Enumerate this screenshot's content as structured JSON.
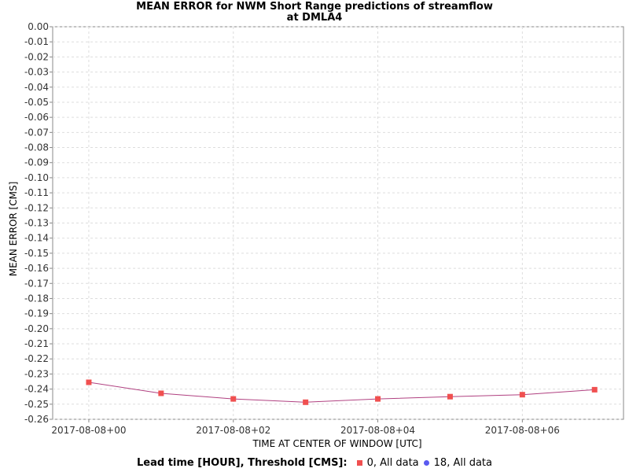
{
  "chart_data": {
    "type": "line",
    "title": [
      "MEAN ERROR for NWM Short Range predictions of streamflow",
      "at DMLA4"
    ],
    "xlabel": "TIME AT CENTER OF WINDOW [UTC]",
    "ylabel": "MEAN ERROR [CMS]",
    "xlim": [
      -0.5,
      7.4
    ],
    "ylim": [
      -0.26,
      0.0
    ],
    "x_ticks": [
      {
        "value": 0,
        "label": "2017-08-08+00"
      },
      {
        "value": 2,
        "label": "2017-08-08+02"
      },
      {
        "value": 4,
        "label": "2017-08-08+04"
      },
      {
        "value": 6,
        "label": "2017-08-08+06"
      }
    ],
    "y_ticks": [
      0.0,
      -0.01,
      -0.02,
      -0.03,
      -0.04,
      -0.05,
      -0.06,
      -0.07,
      -0.08,
      -0.09,
      -0.1,
      -0.11,
      -0.12,
      -0.13,
      -0.14,
      -0.15,
      -0.16,
      -0.17,
      -0.18,
      -0.19,
      -0.2,
      -0.21,
      -0.22,
      -0.23,
      -0.24,
      -0.25,
      -0.26
    ],
    "grid": true,
    "series": [
      {
        "name": "0, All data",
        "color": "#f05050",
        "line_color": "#b04080",
        "marker": "square",
        "x": [
          0,
          1,
          2,
          3,
          4,
          5,
          6,
          7
        ],
        "y": [
          -0.2355,
          -0.2428,
          -0.2465,
          -0.2487,
          -0.2465,
          -0.245,
          -0.2437,
          -0.2404
        ]
      },
      {
        "name": "18, All data",
        "color": "#5a5af0",
        "marker": "circle",
        "x": [],
        "y": []
      }
    ],
    "legend": {
      "title": "Lead time [HOUR], Threshold [CMS]:",
      "placement": "bottom"
    }
  }
}
